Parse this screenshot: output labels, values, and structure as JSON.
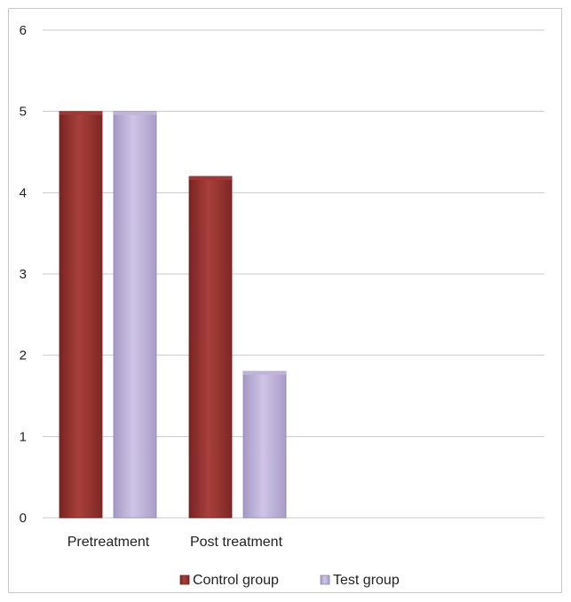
{
  "chart_data": {
    "type": "bar",
    "categories": [
      "Pretreatment",
      "Post treatment"
    ],
    "series": [
      {
        "name": "Control group",
        "values": [
          5,
          4.2
        ]
      },
      {
        "name": "Test group",
        "values": [
          5,
          1.8
        ]
      }
    ],
    "ylim": [
      0,
      6
    ],
    "yticks": [
      "0",
      "1",
      "2",
      "3",
      "4",
      "5",
      "6"
    ],
    "grid": true,
    "legend": "bottom",
    "colors": {
      "control": "#9e3a37",
      "control_dark": "#6e1f1d",
      "test": "#c1b4da",
      "test_dark": "#8f84ad",
      "grid": "#c8c8c8"
    }
  }
}
